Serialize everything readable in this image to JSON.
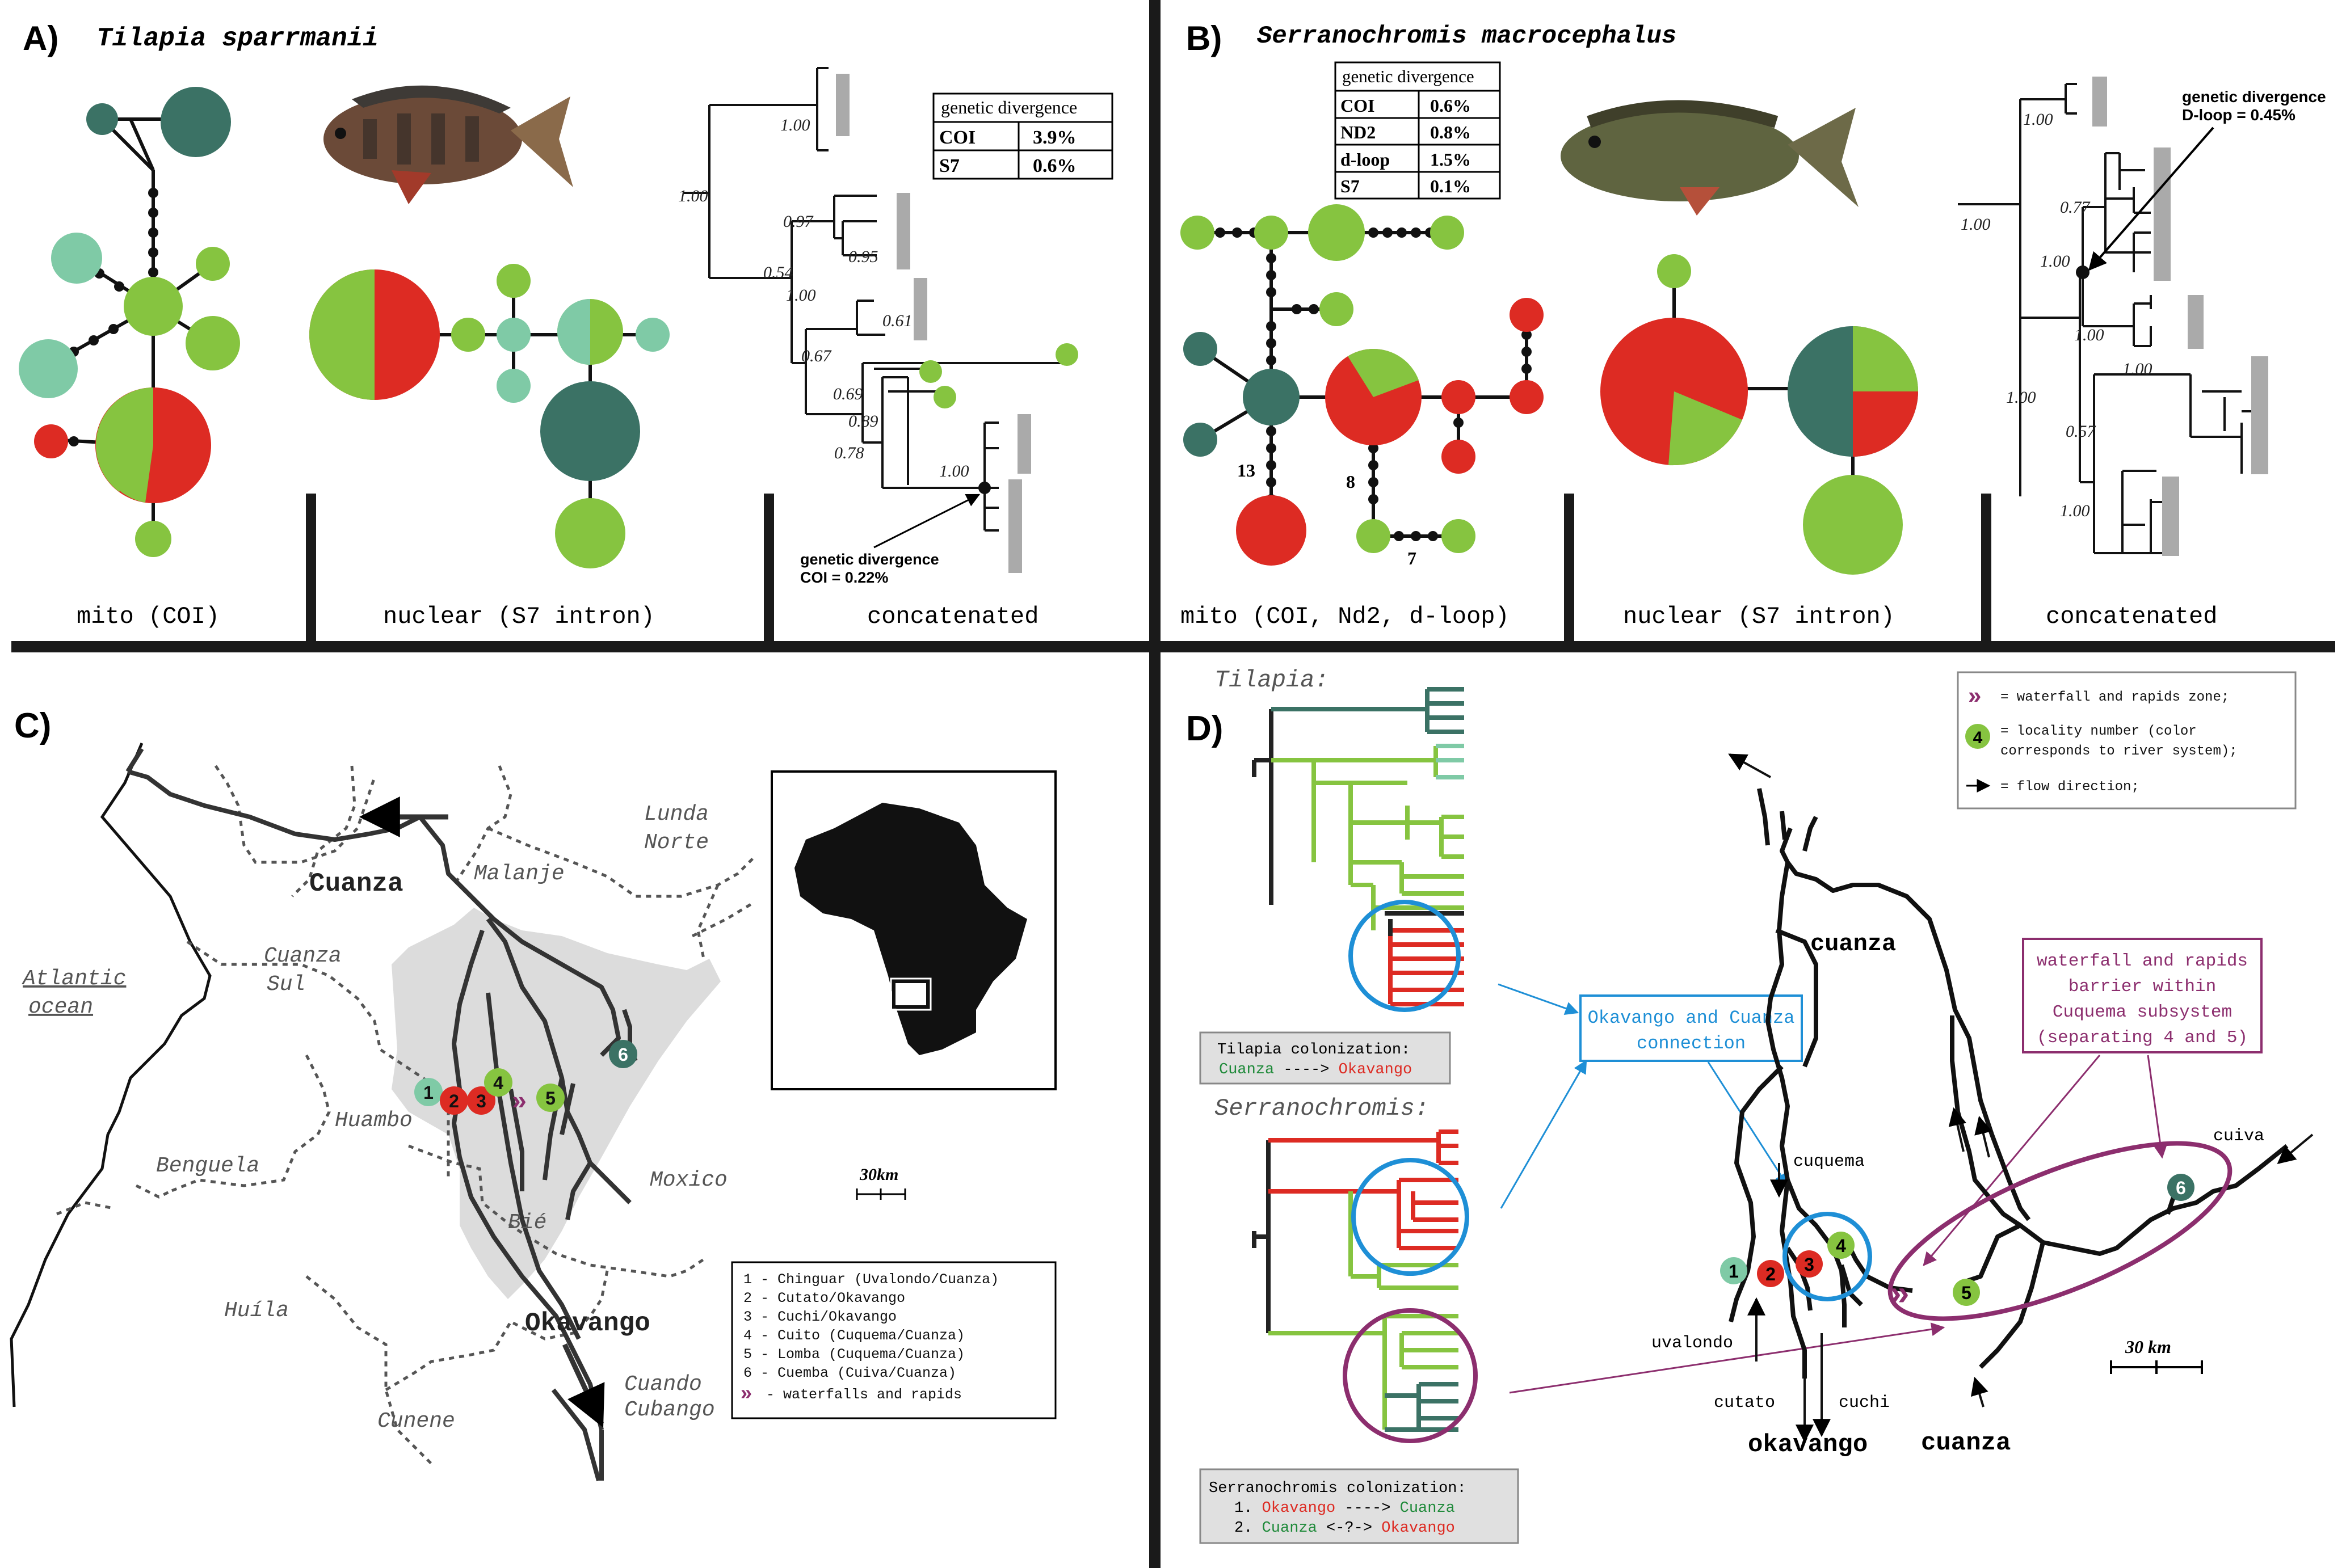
{
  "panels": {
    "A": {
      "letter": "A)",
      "species": "Tilapia sparrmanii",
      "footer": {
        "mito": "mito (COI)",
        "nuclear": "nuclear (S7 intron)",
        "concat": "concatenated"
      },
      "table": {
        "header": "genetic divergence",
        "rows": [
          [
            "COI",
            "3.9%"
          ],
          [
            "S7",
            "0.6%"
          ]
        ]
      },
      "note": [
        "genetic divergence",
        "COI = 0.22%"
      ],
      "support": [
        "1.00",
        "1.00",
        "0.97",
        "0.95",
        "0.54",
        "1.00",
        "0.61",
        "0.67",
        "0.69",
        "0.89",
        "0.78",
        "1.00"
      ]
    },
    "B": {
      "letter": "B)",
      "species": "Serranochromis macrocephalus",
      "footer": {
        "mito": "mito (COI, Nd2, d-loop)",
        "nuclear": "nuclear (S7 intron)",
        "concat": "concatenated"
      },
      "table": {
        "header": "genetic divergence",
        "rows": [
          [
            "COI",
            "0.6%"
          ],
          [
            "ND2",
            "0.8%"
          ],
          [
            "d-loop",
            "1.5%"
          ],
          [
            "S7",
            "0.1%"
          ]
        ]
      },
      "note": [
        "genetic divergence",
        "D-loop = 0.45%"
      ],
      "steps": [
        "13",
        "8",
        "7"
      ],
      "support": [
        "1.00",
        "1.00",
        "0.77",
        "1.00",
        "1.00",
        "1.00",
        "1.00",
        "0.57",
        "1.00"
      ]
    },
    "C": {
      "letter": "C)",
      "regions": [
        "Cuanza",
        "Malanje",
        "Lunda",
        "Norte",
        "Cuanza",
        "Sul",
        "Atlantic",
        "ocean",
        "Huambo",
        "Benguela",
        "Moxico",
        "Bié",
        "Huíla",
        "Cunene",
        "Okavango",
        "Cuando",
        "Cubango"
      ],
      "scale": "30km",
      "legend": [
        "1 - Chinguar (Uvalondo/Cuanza)",
        "2 - Cutato/Okavango",
        "3 - Cuchi/Okavango",
        "4 - Cuito (Cuquema/Cuanza)",
        "5 - Lomba (Cuquema/Cuanza)",
        "6 - Cuemba (Cuiva/Cuanza)",
        "- waterfalls and rapids"
      ]
    },
    "D": {
      "letter": "D)",
      "tilapia": "Tilapia:",
      "serrano": "Serranochromis:",
      "tilapia_box": {
        "title": "Tilapia colonization:",
        "from": "Cuanza",
        "arrow": " ----> ",
        "to": "Okavango"
      },
      "serrano_box": {
        "title": "Serranochromis colonization:",
        "l1_num": "1. ",
        "l1_from": "Okavango",
        "l1_arrow": " ----> ",
        "l1_to": "Cuanza",
        "l2_num": "2. ",
        "l2_from": "Cuanza",
        "l2_arrow": " <-?-> ",
        "l2_to": "Okavango"
      },
      "connection": [
        "Okavango and Cuanza",
        "connection"
      ],
      "barrier": [
        "waterfall and rapids",
        "barrier within",
        "Cuquema subsystem",
        "(separating 4 and 5)"
      ],
      "legend": [
        "= waterfall and rapids zone;",
        "= locality number (color",
        "corresponds to river system);",
        "= flow direction;"
      ],
      "rivers": [
        "cuanza",
        "cuquema",
        "cuiva",
        "uvalondo",
        "cutato",
        "cuchi",
        "okavango",
        "cuanza"
      ],
      "scale": "30 km"
    }
  },
  "localities": [
    "1",
    "2",
    "3",
    "4",
    "5",
    "6"
  ],
  "colors": {
    "cuanza_light": "#86c440",
    "cuanza_mid": "#7fcaa6",
    "cuanza_dark": "#3b7265",
    "okavango": "#dd2b23",
    "purple": "#8c2e6e",
    "blue": "#1e8fd6",
    "grey": "#aaaaaa"
  }
}
